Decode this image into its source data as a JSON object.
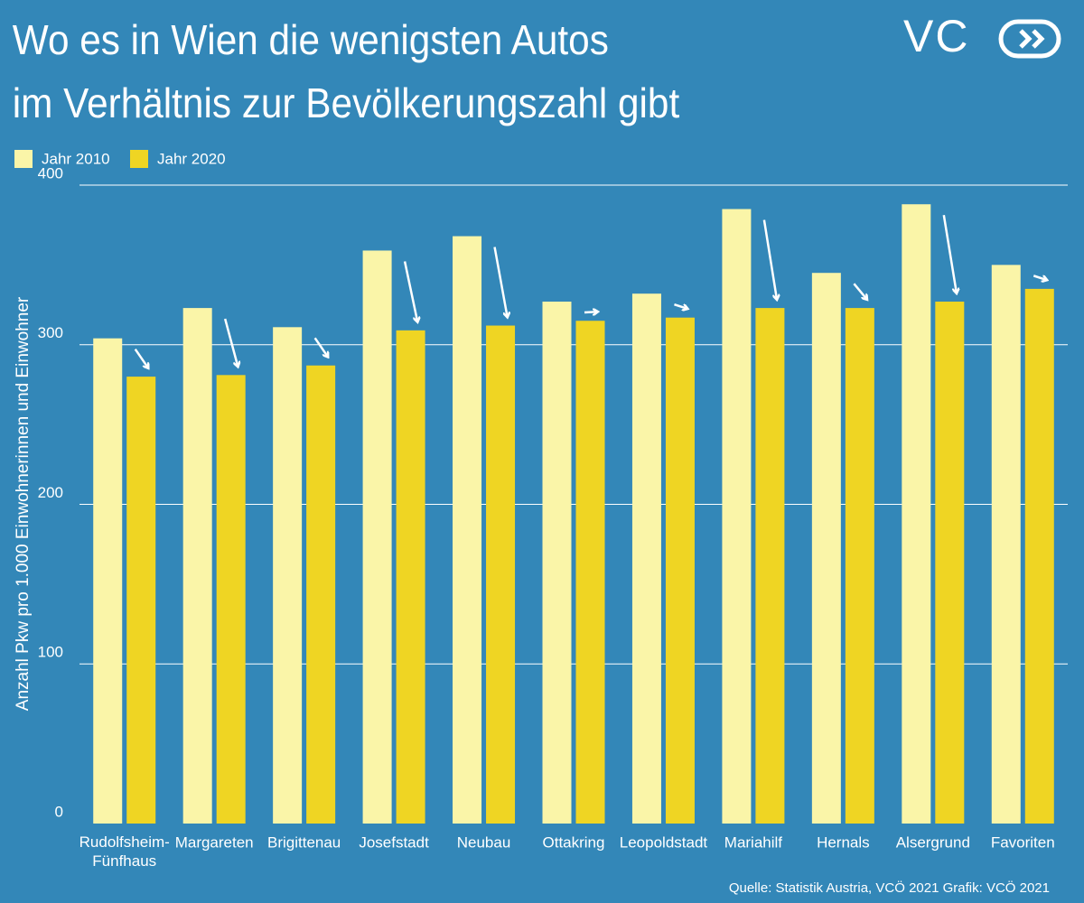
{
  "chart_data": {
    "type": "bar",
    "title": [
      "Wo es in Wien die wenigsten Autos",
      " im Verhältnis zur Bevölkerungszahl gibt"
    ],
    "logo": "VC",
    "y_label": "Anzahl Pkw pro 1.000 Einwohnerinnen und Einwohner",
    "source": "Quelle: Statistik Austria, VCÖ 2021 Grafik: VCÖ 2021",
    "categories": [
      "Rudolfsheim-\nFünfhaus",
      "Margareten",
      "Brigittenau",
      "Josefstadt",
      "Neubau",
      "Ottakring",
      "Leopoldstadt",
      "Mariahilf",
      "Hernals",
      "Alsergrund",
      "Favoriten"
    ],
    "series": [
      {
        "name": "Jahr 2010",
        "color": "#faf5a8",
        "values": [
          304,
          323,
          311,
          359,
          368,
          327,
          332,
          385,
          345,
          388,
          350
        ]
      },
      {
        "name": "Jahr 2020",
        "color": "#efd523",
        "values": [
          280,
          281,
          287,
          309,
          312,
          315,
          317,
          323,
          323,
          327,
          335
        ]
      }
    ],
    "ylim": [
      0,
      400
    ],
    "yticks": [
      0,
      100,
      200,
      300,
      400
    ],
    "grid": true
  }
}
